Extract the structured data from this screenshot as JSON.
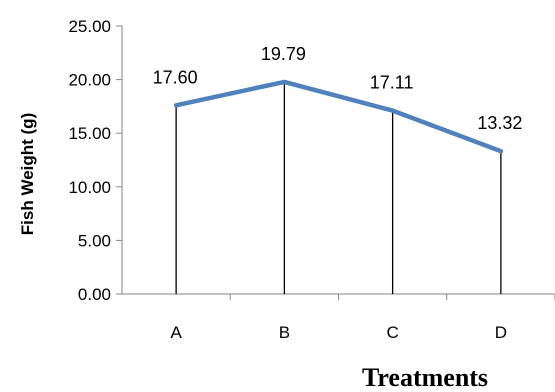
{
  "chart_data": {
    "type": "line",
    "categories": [
      "A",
      "B",
      "C",
      "D"
    ],
    "values": [
      17.6,
      19.79,
      17.11,
      13.32
    ],
    "data_labels": [
      "17.60",
      "19.79",
      "17.11",
      "13.32"
    ],
    "ylabel": "Fish Weight (g)",
    "xlabel": "Treatments",
    "ylim": [
      0,
      25
    ],
    "yticks": [
      "0.00",
      "5.00",
      "10.00",
      "15.00",
      "20.00",
      "25.00"
    ],
    "drop_lines": true,
    "grid": false,
    "line_color": "#4f81bd"
  }
}
